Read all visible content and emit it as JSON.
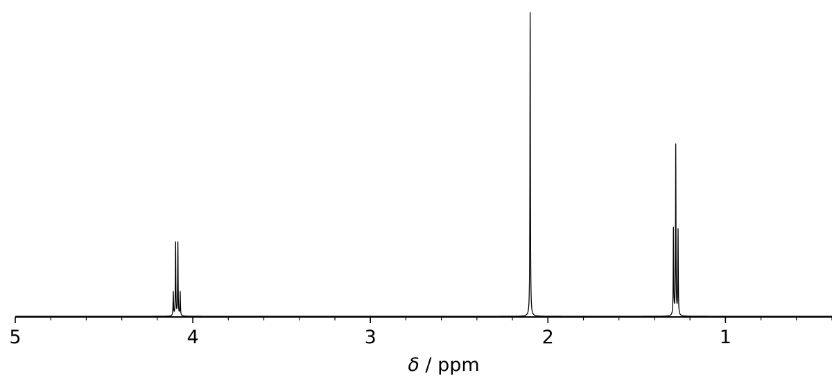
{
  "chart_data": {
    "type": "line",
    "title": "",
    "xlabel": "δ / ppm",
    "xlabel_symbol": "δ",
    "xlabel_rest": " / ppm",
    "ylabel": "",
    "x_axis_reversed": true,
    "xlim": [
      5.0,
      0.4
    ],
    "ylim": [
      0,
      1.0
    ],
    "grid": false,
    "legend": "none",
    "y_axis_visible": false,
    "x_major_ticks": [
      {
        "value": 5,
        "label": "5"
      },
      {
        "value": 4,
        "label": "4"
      },
      {
        "value": 3,
        "label": "3"
      },
      {
        "value": 2,
        "label": "2"
      },
      {
        "value": 1,
        "label": "1"
      }
    ],
    "x_minor_tick_step": 0.2,
    "line_color": "#000000",
    "peak_width": 0.0015,
    "series": [
      {
        "peaks": [
          {
            "shift": 4.11,
            "intensity": 0.078
          },
          {
            "shift": 4.097,
            "intensity": 0.241
          },
          {
            "shift": 4.084,
            "intensity": 0.241
          },
          {
            "shift": 4.071,
            "intensity": 0.078
          },
          {
            "shift": 2.1,
            "intensity": 1.0
          },
          {
            "shift": 1.293,
            "intensity": 0.285
          },
          {
            "shift": 1.28,
            "intensity": 0.56
          },
          {
            "shift": 1.267,
            "intensity": 0.28
          }
        ]
      }
    ]
  }
}
